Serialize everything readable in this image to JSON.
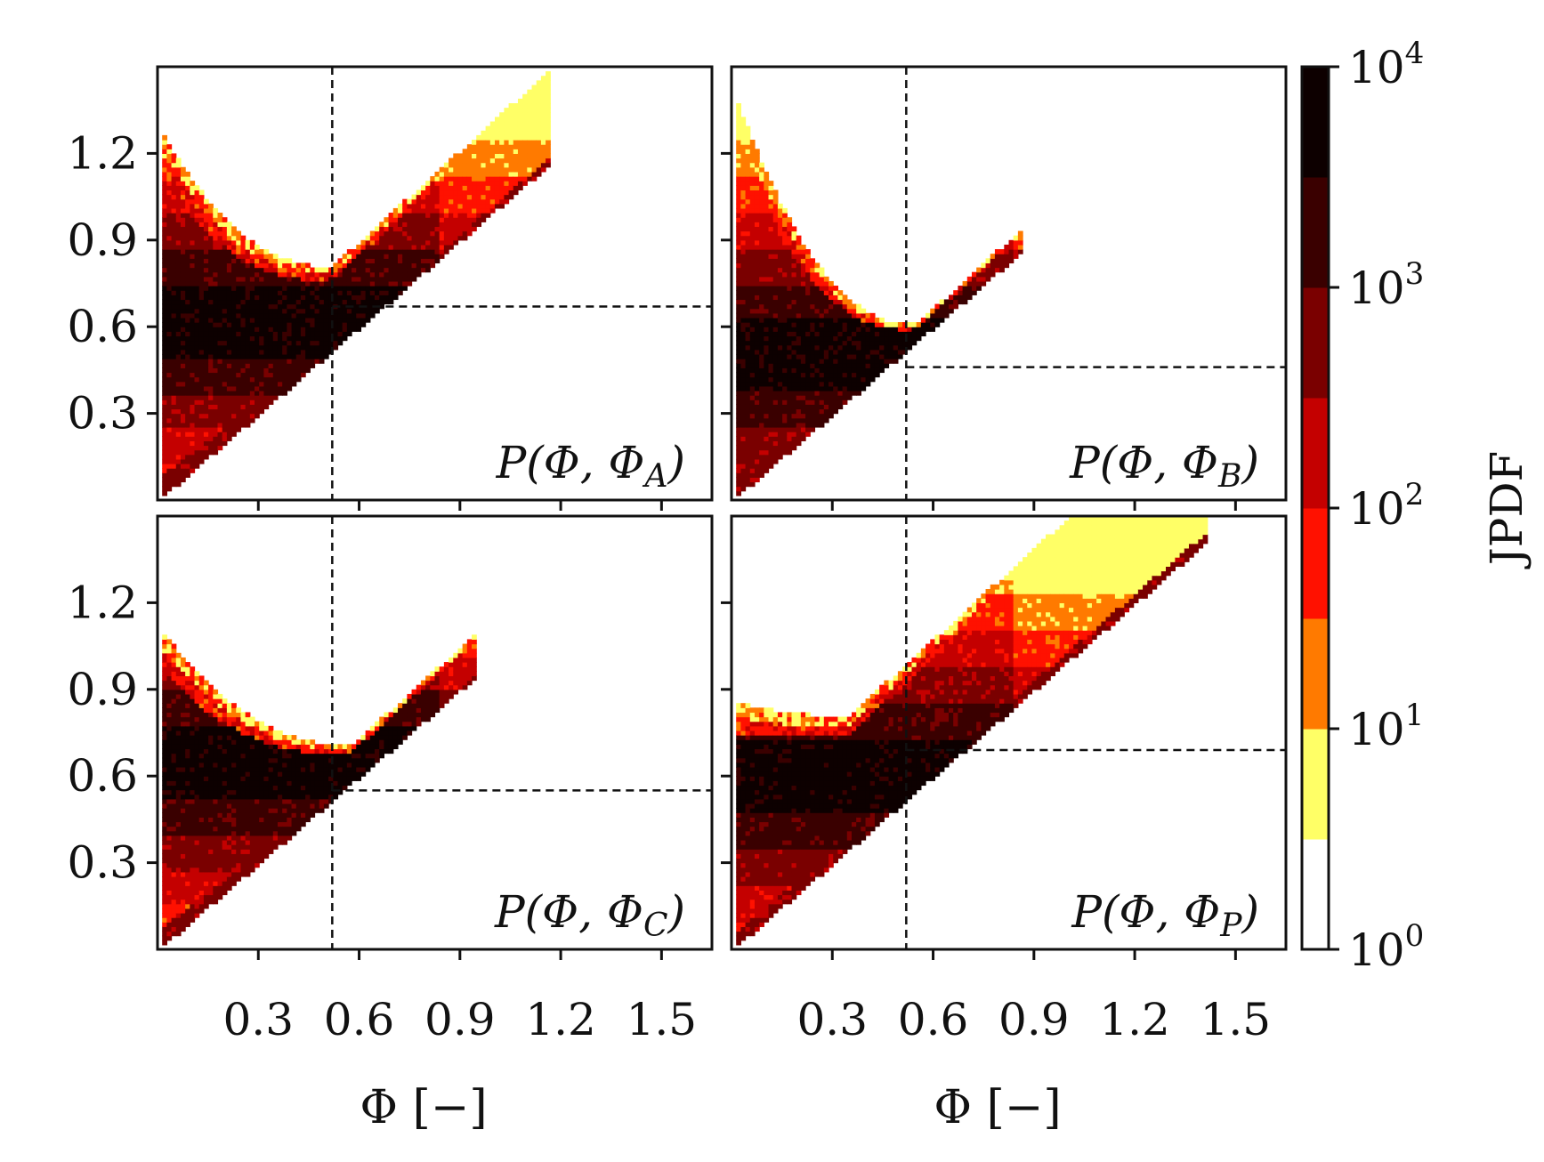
{
  "chart_data": {
    "type": "heatmap",
    "colorbar": {
      "label": "JPDF",
      "scale": "log",
      "range": [
        1,
        10000
      ],
      "ticks": [
        {
          "base": "10",
          "exp": "0"
        },
        {
          "base": "10",
          "exp": "1"
        },
        {
          "base": "10",
          "exp": "2"
        },
        {
          "base": "10",
          "exp": "3"
        },
        {
          "base": "10",
          "exp": "4"
        }
      ],
      "levels": [
        "#ffffff",
        "#ffff66",
        "#ff7a00",
        "#ff1100",
        "#c40000",
        "#7a0000",
        "#3a0000",
        "#0d0000"
      ]
    },
    "x_axis": {
      "label": "Φ [−]",
      "range": [
        0.0,
        1.65
      ],
      "ticks": [
        "0.3",
        "0.6",
        "0.9",
        "1.2",
        "1.5"
      ]
    },
    "y_axis": {
      "label": "",
      "range": [
        0.0,
        1.5
      ],
      "ticks": [
        "0.3",
        "0.6",
        "0.9",
        "1.2"
      ]
    },
    "panels": [
      {
        "label": "P(Φ, Φ_A)",
        "base": "P(Φ, Φ",
        "sub": "A",
        "mean_x": 0.52,
        "mean_y": 0.67,
        "upper_y0": 1.27,
        "upper_min": 0.8,
        "upper_xmin": 0.52,
        "diag_end": 1.17,
        "density_center_y": 0.62
      },
      {
        "label": "P(Φ, Φ_B)",
        "base": "P(Φ, Φ",
        "sub": "B",
        "mean_x": 0.52,
        "mean_y": 0.46,
        "upper_y0": 1.4,
        "upper_min": 0.6,
        "upper_xmin": 0.55,
        "diag_end": 0.87,
        "density_center_y": 0.5
      },
      {
        "label": "P(Φ, Φ_C)",
        "base": "P(Φ, Φ",
        "sub": "C",
        "mean_x": 0.52,
        "mean_y": 0.55,
        "upper_y0": 1.1,
        "upper_min": 0.7,
        "upper_xmin": 0.58,
        "diag_end": 0.95,
        "density_center_y": 0.65
      },
      {
        "label": "P(Φ, Φ_P)",
        "base": "P(Φ, Φ",
        "sub": "P",
        "mean_x": 0.52,
        "mean_y": 0.69,
        "upper_y0": 0.85,
        "upper_min": 0.8,
        "upper_xmin": 0.35,
        "diag_end": 1.42,
        "density_center_y": 0.6
      }
    ]
  }
}
